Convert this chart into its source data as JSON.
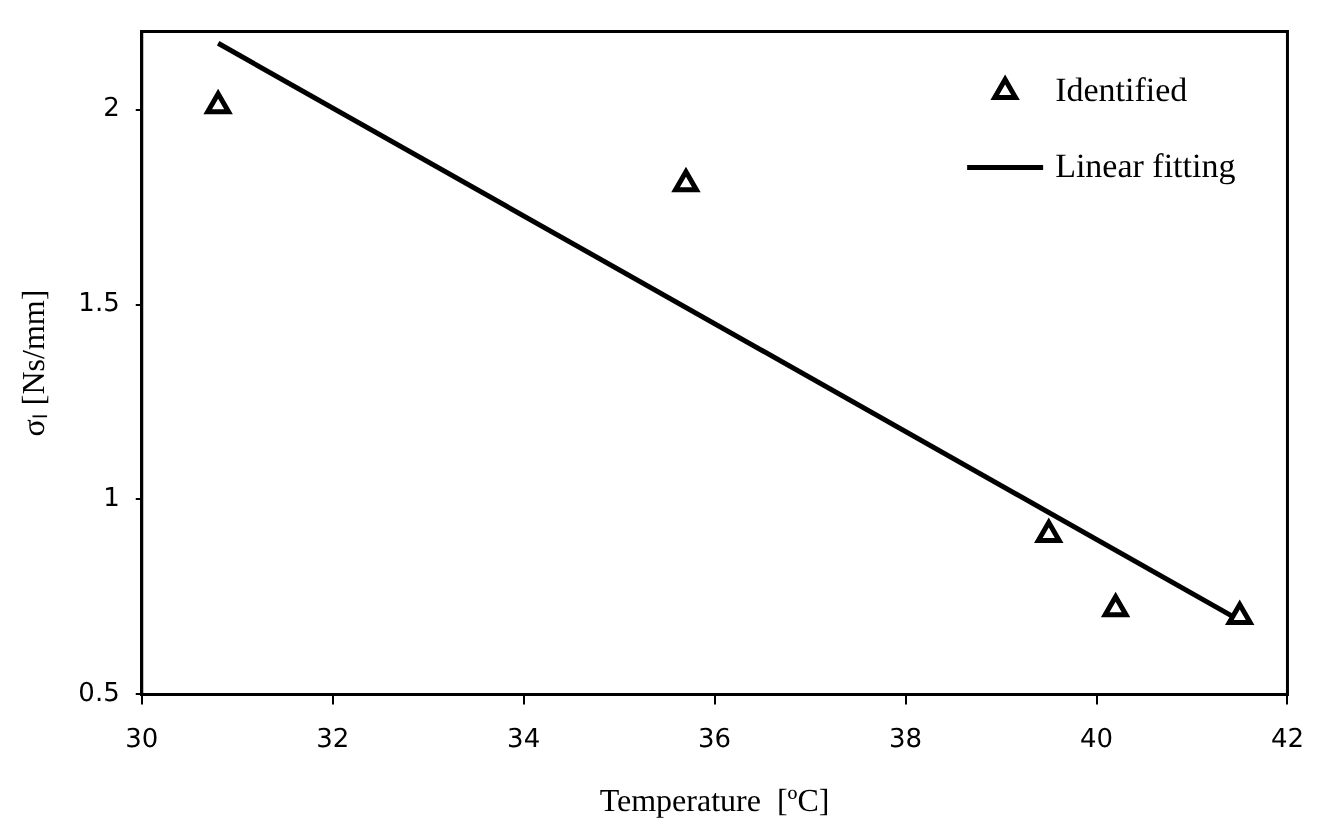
{
  "chart_data": {
    "type": "scatter",
    "xlabel": "Temperature  [ºC]",
    "ylabel": "σₗ [Ns/mm]",
    "xlim": [
      30,
      42
    ],
    "xticks": [
      30,
      32,
      34,
      36,
      38,
      40,
      42
    ],
    "ylim": [
      0.5,
      2.2
    ],
    "yticks": [
      0.5,
      1,
      1.5,
      2
    ],
    "grid": false,
    "legend": "top right",
    "marker": "triangle",
    "series": [
      {
        "name": "Identified",
        "color": "#000000",
        "x": [
          30.8,
          35.7,
          39.5,
          40.2,
          41.5
        ],
        "values": [
          2.01,
          1.81,
          0.91,
          0.72,
          0.7
        ]
      },
      {
        "name": "Linear fitting",
        "type": "line",
        "color": "#000000",
        "x": [
          30.8,
          41.5
        ],
        "values": [
          2.17,
          0.69
        ],
        "marker": "none",
        "line_style": "solid"
      }
    ]
  }
}
